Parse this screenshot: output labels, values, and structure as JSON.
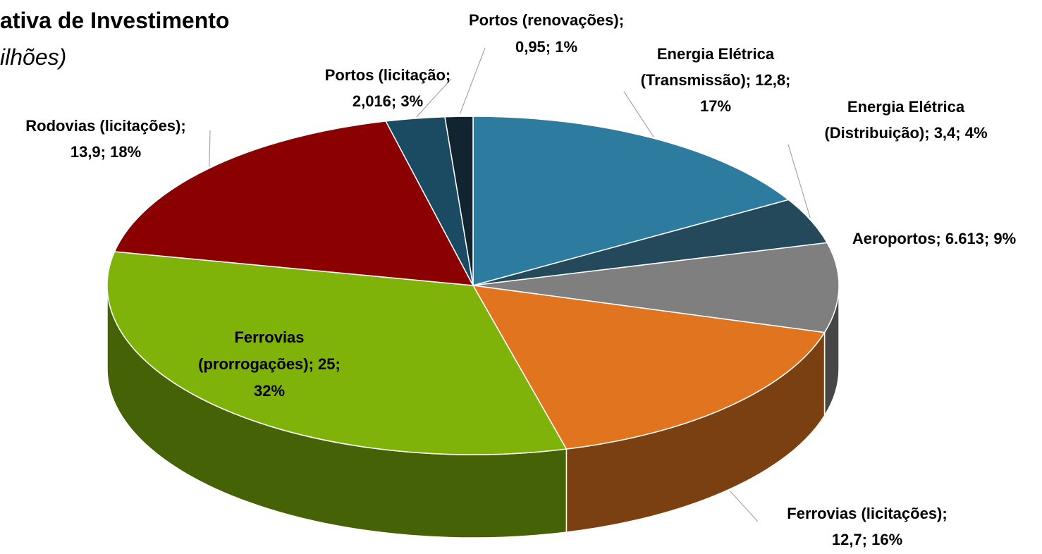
{
  "chart_data": {
    "type": "pie3d",
    "title": "ativa de Investimento",
    "subtitle": "ilhões)",
    "labels": [
      [
        "Energia Elétrica",
        "(Transmissão); 12,8;",
        "17%"
      ],
      [
        "Energia Elétrica",
        "(Distribuição); 3,4; 4%"
      ],
      [
        "Aeroportos; 6.613; 9%"
      ],
      [
        "Ferrovias (licitações);",
        "12,7; 16%"
      ],
      [
        "Ferrovias",
        "(prorrogações); 25;",
        "32%"
      ],
      [
        "Rodovias (licitações);",
        "13,9; 18%"
      ],
      [
        "Portos (licitação;",
        "2,016; 3%"
      ],
      [
        "Portos (renovações);",
        "0,95; 1%"
      ]
    ],
    "values": [
      12.8,
      3.4,
      6.613,
      12.7,
      25,
      13.9,
      2.016,
      0.95
    ],
    "colors": [
      "#2e7ba0",
      "#24495a",
      "#7f7f7f",
      "#e0741f",
      "#7fb30a",
      "#8b0000",
      "#1b4b62",
      "#11242f"
    ]
  }
}
